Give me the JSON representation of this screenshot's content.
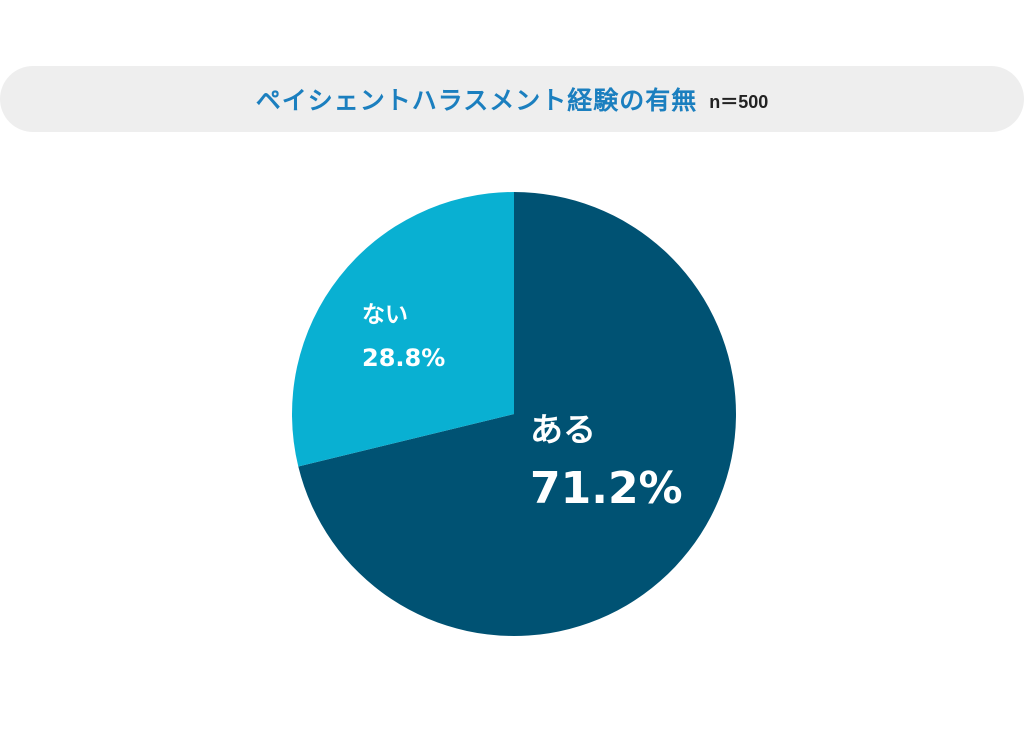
{
  "header": {
    "title": "ペイシェントハラスメント経験の有無",
    "sample_size": "n＝500"
  },
  "colors": {
    "title_text": "#1b7fbf",
    "title_bar": "#eeeeee",
    "slice_yes": "#005273",
    "slice_no": "#09b0d2",
    "label_text": "#ffffff"
  },
  "chart_data": {
    "type": "pie",
    "title": "ペイシェントハラスメント経験の有無",
    "n_label": "n＝500",
    "start": "12 o'clock",
    "direction": "clockwise",
    "slices": [
      {
        "label": "ある",
        "value": 71.2,
        "value_label": "71.2%",
        "color": "#005273"
      },
      {
        "label": "ない",
        "value": 28.8,
        "value_label": "28.8%",
        "color": "#09b0d2"
      }
    ]
  }
}
